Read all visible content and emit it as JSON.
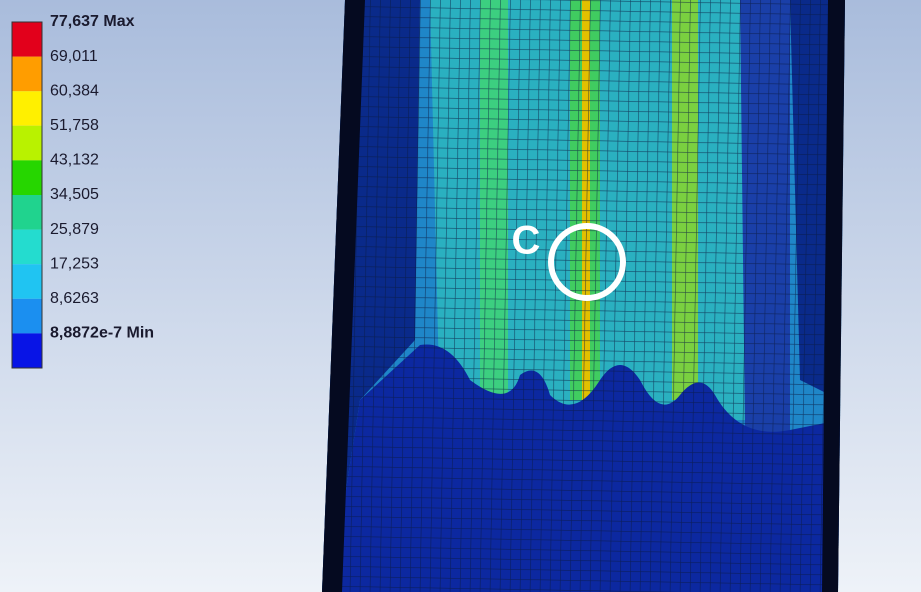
{
  "legend": {
    "labels": [
      "77,637 Max",
      "69,011",
      "60,384",
      "51,758",
      "43,132",
      "34,505",
      "25,879",
      "17,253",
      "8,6263",
      "8,8872e-7 Min"
    ],
    "colors": [
      "#e2001b",
      "#ff9d00",
      "#fff000",
      "#b9f200",
      "#26d600",
      "#20d38e",
      "#24dccf",
      "#20c4f2",
      "#1b8ff0",
      "#0814e6"
    ]
  },
  "annotation": "C"
}
